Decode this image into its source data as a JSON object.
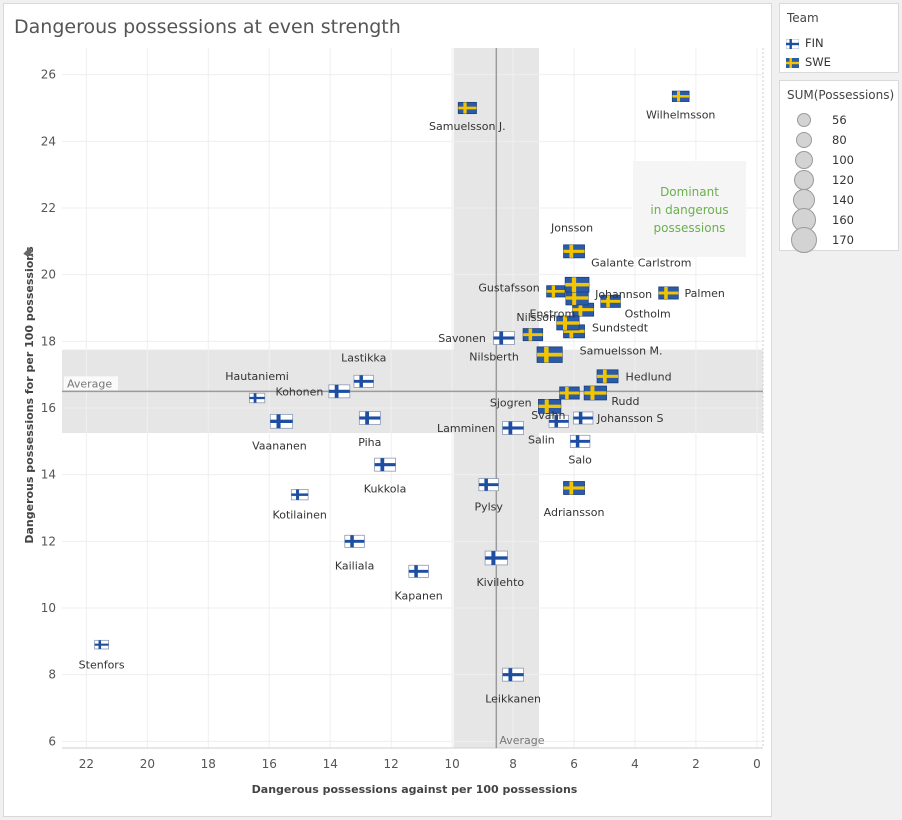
{
  "chart_data": {
    "type": "scatter",
    "title": "Dangerous possessions at even strength",
    "xlabel": "Dangerous possessions against per 100 possessions",
    "ylabel": "Dangerous possessions for per 100 possessions",
    "xlim": [
      22.8,
      -0.2
    ],
    "ylim": [
      5.8,
      26.8
    ],
    "x_reversed": true,
    "x_ticks": [
      22,
      20,
      18,
      16,
      14,
      12,
      10,
      8,
      6,
      4,
      2,
      0
    ],
    "y_ticks": [
      6,
      8,
      10,
      12,
      14,
      16,
      18,
      20,
      22,
      24,
      26
    ],
    "grid": true,
    "reference_lines": {
      "x_average": 8.55,
      "y_average": 16.5,
      "x_band": [
        9.95,
        7.15
      ],
      "y_band": [
        17.75,
        15.25
      ],
      "x_label": "Average",
      "y_label": "Average"
    },
    "annotation": "Dominant in dangerous possessions",
    "colors": {
      "FIN_blue": "#1d4ea1",
      "SWE_blue": "#2a5aa8",
      "SWE_yellow": "#f2c500",
      "annotation_green": "#6ab04c",
      "band": "#e6e6e6",
      "avg_line": "#9b9b9b"
    },
    "legend": {
      "team_title": "Team",
      "teams": [
        "FIN",
        "SWE"
      ],
      "size_title": "SUM(Possessions)",
      "sizes": [
        56,
        80,
        100,
        120,
        140,
        160,
        170
      ]
    },
    "points": [
      {
        "name": "Samuelsson J.",
        "team": "SWE",
        "x": 9.5,
        "y": 25.0,
        "size": 100
      },
      {
        "name": "Wilhelmsson",
        "team": "SWE",
        "x": 2.5,
        "y": 25.35,
        "size": 90
      },
      {
        "name": "Jonsson",
        "team": "SWE",
        "x": 6.0,
        "y": 20.7,
        "size": 120
      },
      {
        "name": "Galante Carlstrom",
        "team": "SWE",
        "x": 5.9,
        "y": 19.7,
        "size": 140
      },
      {
        "name": "Johannson",
        "team": "SWE",
        "x": 5.9,
        "y": 19.3,
        "size": 130
      },
      {
        "name": "Gustafsson",
        "team": "SWE",
        "x": 6.6,
        "y": 19.5,
        "size": 100
      },
      {
        "name": "Palmen",
        "team": "SWE",
        "x": 2.9,
        "y": 19.45,
        "size": 110
      },
      {
        "name": "Enstrom",
        "team": "SWE",
        "x": 5.7,
        "y": 18.95,
        "size": 120
      },
      {
        "name": "Ostholm",
        "team": "SWE",
        "x": 4.8,
        "y": 19.2,
        "size": 110
      },
      {
        "name": "Nilsson",
        "team": "SWE",
        "x": 6.2,
        "y": 18.55,
        "size": 130
      },
      {
        "name": "Sundstedt",
        "team": "SWE",
        "x": 6.0,
        "y": 18.3,
        "size": 120
      },
      {
        "name": "Savonen",
        "team": "FIN",
        "x": 8.3,
        "y": 18.1,
        "size": 120
      },
      {
        "name": "Samuelsson M.",
        "team": "SWE",
        "x": 6.8,
        "y": 17.6,
        "size": 150
      },
      {
        "name": "Nilsberth",
        "team": "SWE",
        "x": 7.35,
        "y": 18.2,
        "size": 110
      },
      {
        "name": "Lastikka",
        "team": "FIN",
        "x": 12.9,
        "y": 16.8,
        "size": 110
      },
      {
        "name": "Hautaniemi",
        "team": "FIN",
        "x": 16.4,
        "y": 16.3,
        "size": 80
      },
      {
        "name": "Kohonen",
        "team": "FIN",
        "x": 13.7,
        "y": 16.5,
        "size": 120
      },
      {
        "name": "Svahn",
        "team": "SWE",
        "x": 6.15,
        "y": 16.45,
        "size": 110
      },
      {
        "name": "Hedlund",
        "team": "SWE",
        "x": 4.9,
        "y": 16.95,
        "size": 120
      },
      {
        "name": "Rudd",
        "team": "SWE",
        "x": 5.3,
        "y": 16.45,
        "size": 130
      },
      {
        "name": "Sjogren",
        "team": "SWE",
        "x": 6.8,
        "y": 16.05,
        "size": 130
      },
      {
        "name": "Piha",
        "team": "FIN",
        "x": 12.7,
        "y": 15.7,
        "size": 120
      },
      {
        "name": "Vaananen",
        "team": "FIN",
        "x": 15.6,
        "y": 15.6,
        "size": 130
      },
      {
        "name": "Johansson S",
        "team": "FIN",
        "x": 5.7,
        "y": 15.7,
        "size": 110
      },
      {
        "name": "Lamminen",
        "team": "FIN",
        "x": 8.0,
        "y": 15.4,
        "size": 120
      },
      {
        "name": "Salin",
        "team": "FIN",
        "x": 6.5,
        "y": 15.6,
        "size": 110
      },
      {
        "name": "Salo",
        "team": "FIN",
        "x": 5.8,
        "y": 15.0,
        "size": 110
      },
      {
        "name": "Kukkola",
        "team": "FIN",
        "x": 12.2,
        "y": 14.3,
        "size": 120
      },
      {
        "name": "Pylsy",
        "team": "FIN",
        "x": 8.8,
        "y": 13.7,
        "size": 110
      },
      {
        "name": "Adriansson",
        "team": "SWE",
        "x": 6.0,
        "y": 13.6,
        "size": 120
      },
      {
        "name": "Kotilainen",
        "team": "FIN",
        "x": 15.0,
        "y": 13.4,
        "size": 90
      },
      {
        "name": "Kailiala",
        "team": "FIN",
        "x": 13.2,
        "y": 12.0,
        "size": 110
      },
      {
        "name": "Kivilehto",
        "team": "FIN",
        "x": 8.55,
        "y": 11.5,
        "size": 130
      },
      {
        "name": "Kapanen",
        "team": "FIN",
        "x": 11.1,
        "y": 11.1,
        "size": 110
      },
      {
        "name": "Stenfors",
        "team": "FIN",
        "x": 21.5,
        "y": 8.9,
        "size": 70
      },
      {
        "name": "Leikkanen",
        "team": "FIN",
        "x": 8.0,
        "y": 8.0,
        "size": 120
      }
    ]
  }
}
